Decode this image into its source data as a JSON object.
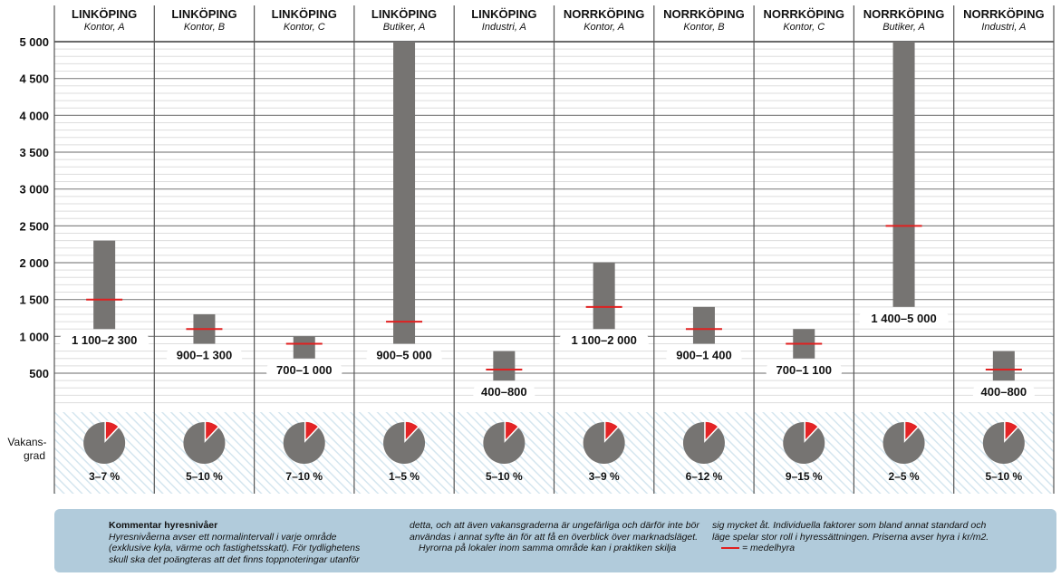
{
  "chart_data": {
    "type": "range-bar",
    "ylim": [
      0,
      5000
    ],
    "yticks": [
      500,
      1000,
      1500,
      2000,
      2500,
      3000,
      3500,
      4000,
      4500,
      5000
    ],
    "ytick_labels": [
      "500",
      "1 000",
      "1 500",
      "2 000",
      "2 500",
      "3 000",
      "3 500",
      "4 000",
      "4 500",
      "5 000"
    ],
    "grid": true,
    "categories": [
      {
        "city": "LINKÖPING",
        "type": "Kontor, A",
        "low": 1100,
        "high": 2300,
        "mean": 1500,
        "label": "1 100–2 300",
        "vacancy": "3–7 %"
      },
      {
        "city": "LINKÖPING",
        "type": "Kontor, B",
        "low": 900,
        "high": 1300,
        "mean": 1100,
        "label": "900–1 300",
        "vacancy": "5–10 %"
      },
      {
        "city": "LINKÖPING",
        "type": "Kontor, C",
        "low": 700,
        "high": 1000,
        "mean": 900,
        "label": "700–1 000",
        "vacancy": "7–10 %"
      },
      {
        "city": "LINKÖPING",
        "type": "Butiker, A",
        "low": 900,
        "high": 5000,
        "mean": 1200,
        "label": "900–5 000",
        "vacancy": "1–5 %"
      },
      {
        "city": "LINKÖPING",
        "type": "Industri, A",
        "low": 400,
        "high": 800,
        "mean": 550,
        "label": "400–800",
        "vacancy": "5–10 %"
      },
      {
        "city": "NORRKÖPING",
        "type": "Kontor, A",
        "low": 1100,
        "high": 2000,
        "mean": 1400,
        "label": "1 100–2 000",
        "vacancy": "3–9 %"
      },
      {
        "city": "NORRKÖPING",
        "type": "Kontor, B",
        "low": 900,
        "high": 1400,
        "mean": 1100,
        "label": "900–1 400",
        "vacancy": "6–12 %"
      },
      {
        "city": "NORRKÖPING",
        "type": "Kontor, C",
        "low": 700,
        "high": 1100,
        "mean": 900,
        "label": "700–1 100",
        "vacancy": "9–15 %"
      },
      {
        "city": "NORRKÖPING",
        "type": "Butiker, A",
        "low": 1400,
        "high": 5000,
        "mean": 2500,
        "label": "1 400–5 000",
        "vacancy": "2–5 %"
      },
      {
        "city": "NORRKÖPING",
        "type": "Industri, A",
        "low": 400,
        "high": 800,
        "mean": 550,
        "label": "400–800",
        "vacancy": "5–10 %"
      }
    ],
    "vacancy_label": [
      "Vakans-",
      "grad"
    ],
    "colors": {
      "bar": "#767472",
      "mean": "#e02020",
      "pie": "#767472",
      "pie_slice": "#e32426",
      "hatch": "#d8e8f0"
    }
  },
  "note": {
    "title": "Kommentar hyresnivåer",
    "col1": "Hyresnivåerna avser ett normalintervall i varje område (exklusive kyla, värme och fastighetsskatt). För tydlighetens skull ska det poängteras att det finns toppnoteringar utanför",
    "col2a": "detta, och att även vakansgraderna är ungefärliga och därför inte bör användas i annat syfte än för att få en överblick över marknadsläget.",
    "col2b": "Hyrorna på lokaler inom samma område kan i praktiken skilja",
    "col3": "sig mycket åt. Individuella faktorer som bland annat standard och läge spelar stor roll i hyressättningen. Priserna avser hyra i kr/m2.",
    "legend": "= medelhyra"
  }
}
